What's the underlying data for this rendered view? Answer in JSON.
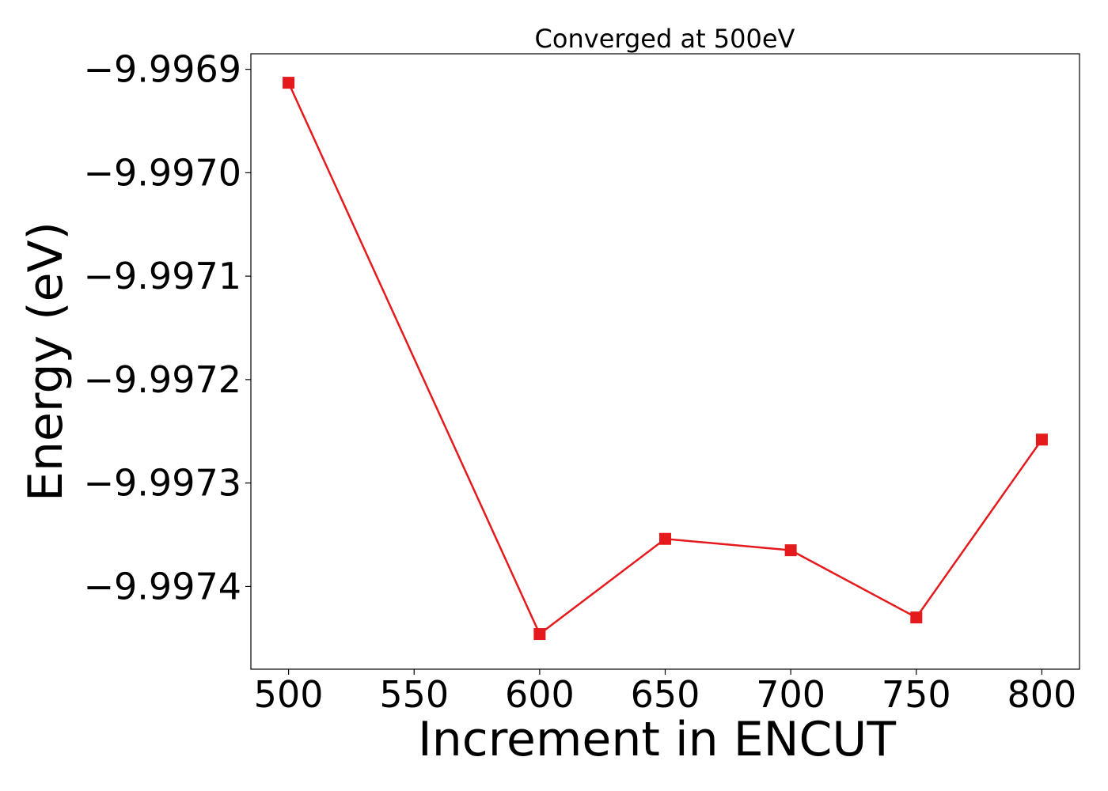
{
  "chart_data": {
    "type": "line",
    "title": "Converged at 500eV",
    "xlabel": "Increment in ENCUT",
    "ylabel": "Energy (eV)",
    "x": [
      500,
      600,
      650,
      700,
      750,
      800
    ],
    "series": [
      {
        "values": [
          -9.996913,
          -9.997446,
          -9.997354,
          -9.997365,
          -9.99743,
          -9.997258
        ],
        "color": "#e41a1c",
        "marker": "square"
      }
    ],
    "xticks": [
      500,
      550,
      600,
      650,
      700,
      750,
      800
    ],
    "xtick_labels": [
      "500",
      "550",
      "600",
      "650",
      "700",
      "750",
      "800"
    ],
    "yticks": [
      -9.9969,
      -9.997,
      -9.9971,
      -9.9972,
      -9.9973,
      -9.9974
    ],
    "ytick_labels": [
      "−9.9969",
      "−9.9970",
      "−9.9971",
      "−9.9972",
      "−9.9973",
      "−9.9974"
    ],
    "xlim": [
      485,
      815
    ],
    "ylim": [
      -9.99748,
      -9.996885
    ],
    "grid": false,
    "legend": "none"
  }
}
